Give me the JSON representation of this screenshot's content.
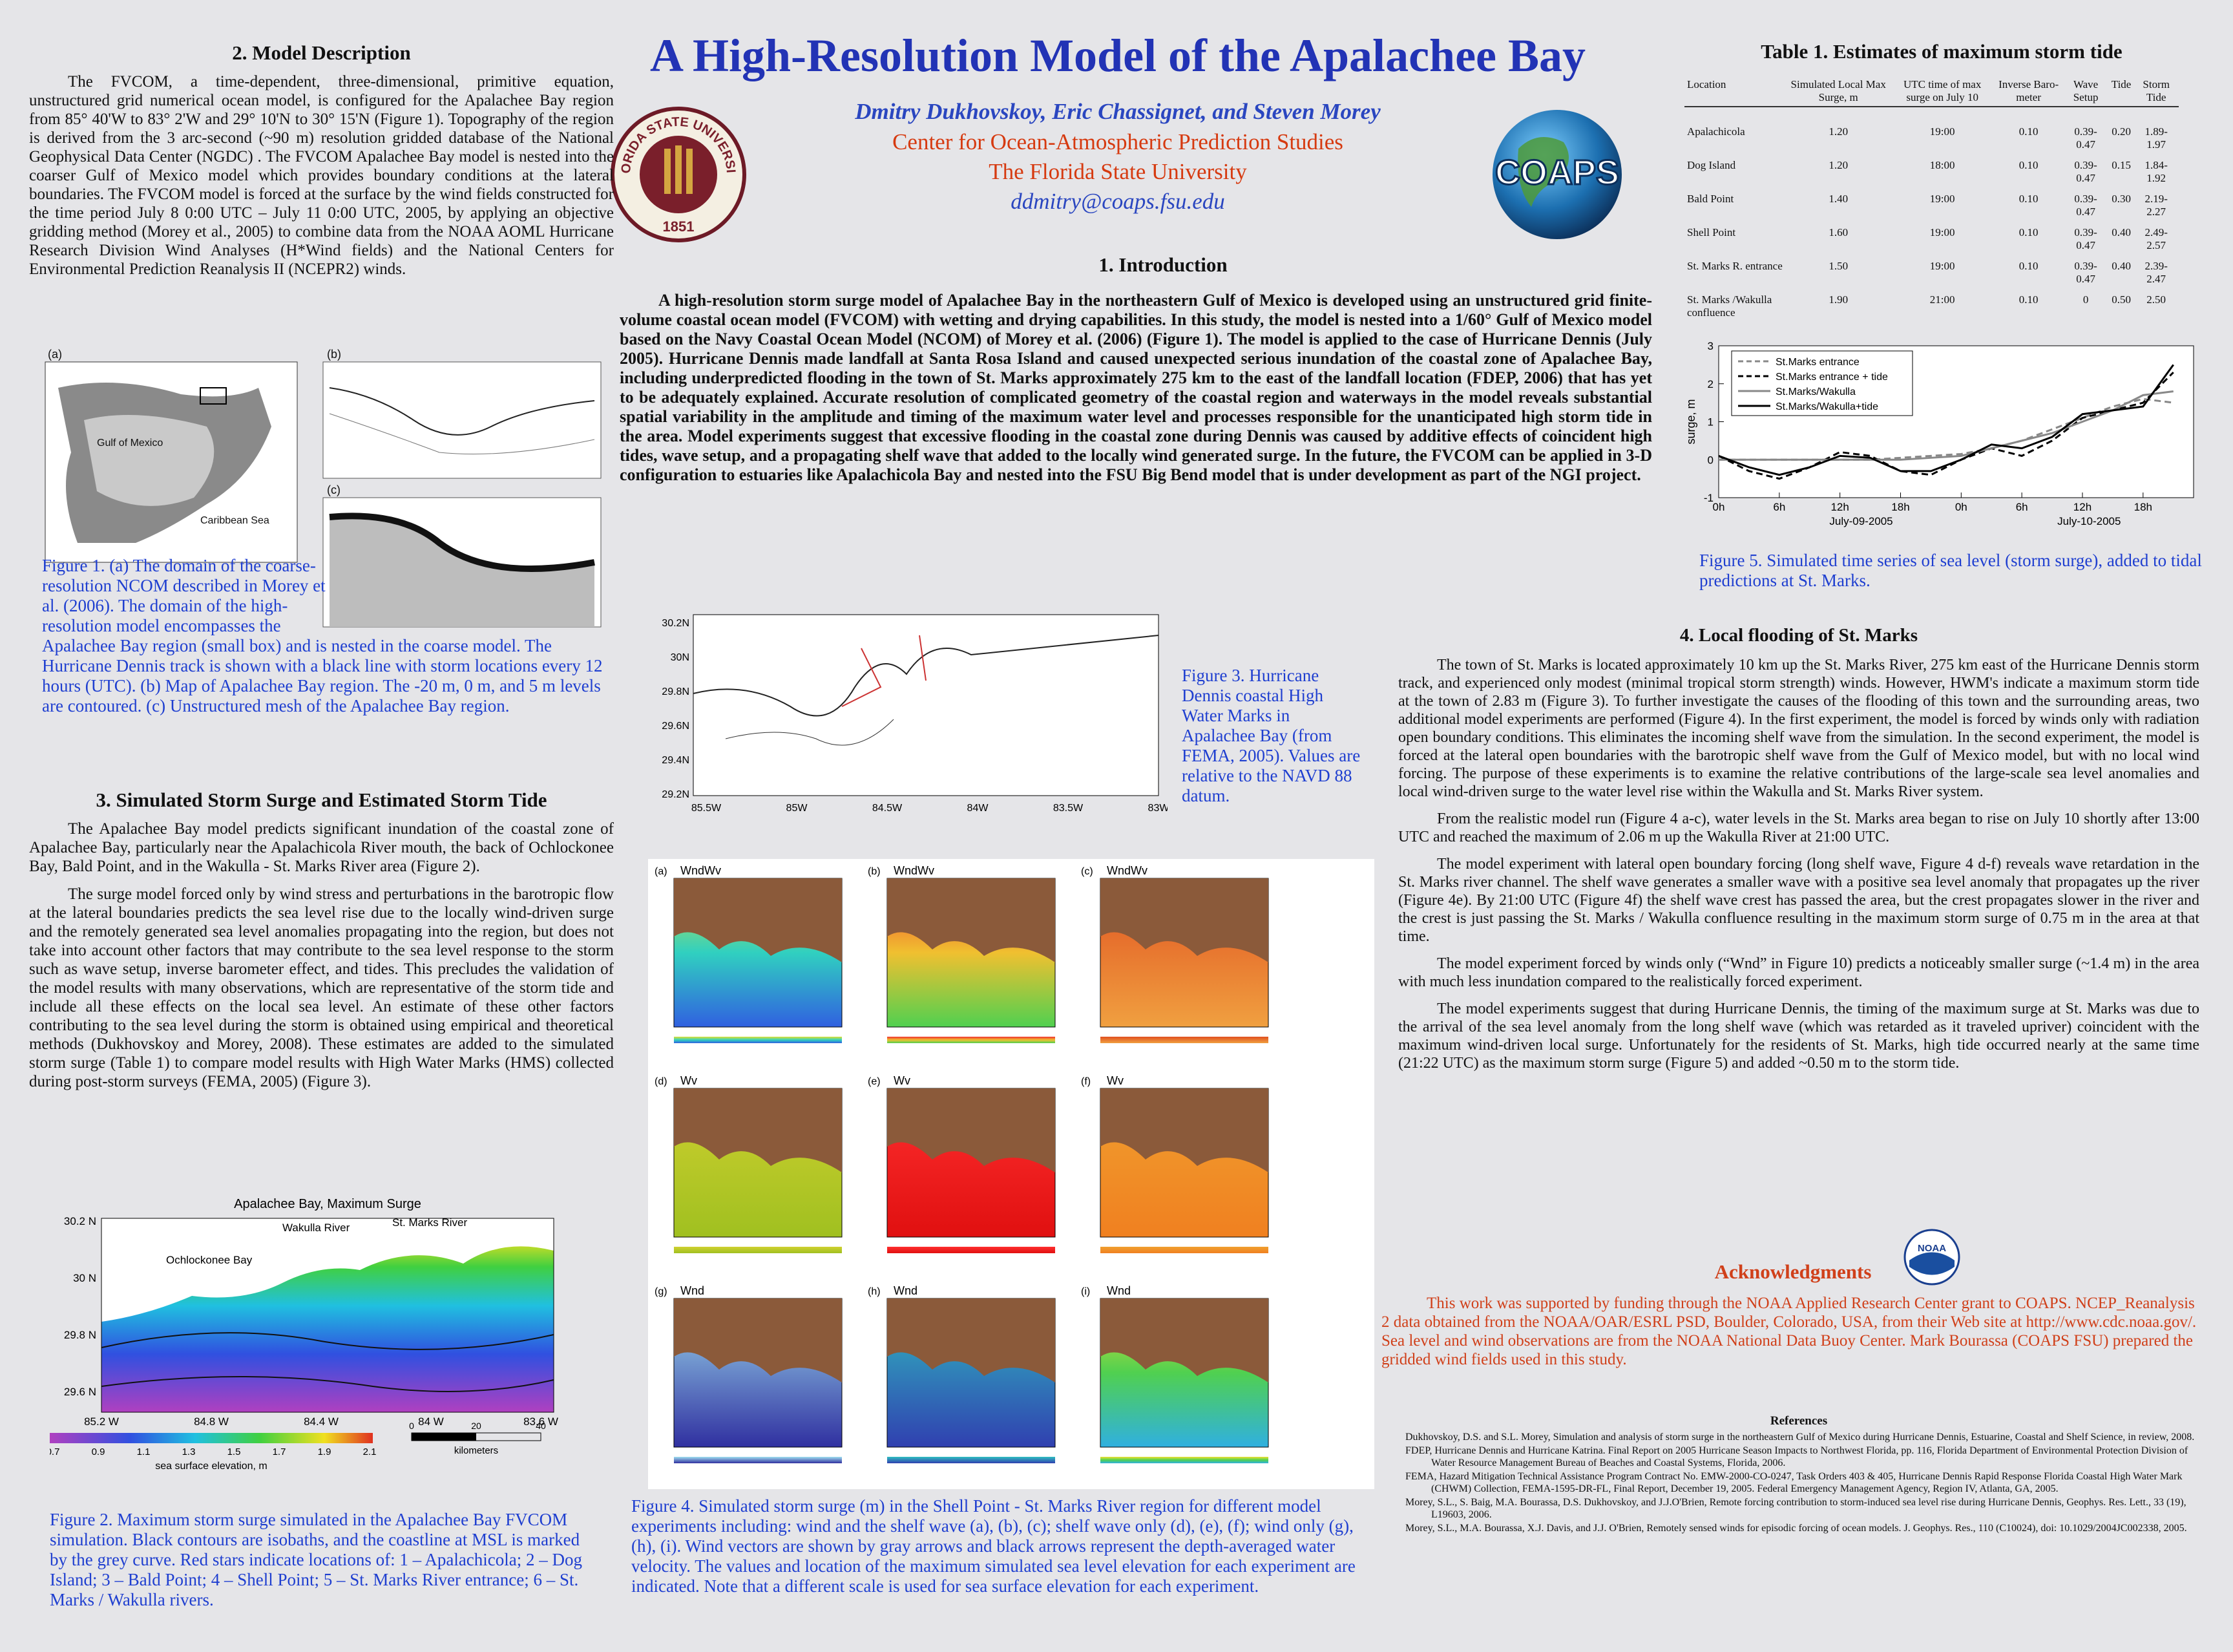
{
  "header": {
    "title": "A High-Resolution Model of the Apalachee Bay",
    "authors": "Dmitry Dukhovskoy, Eric Chassignet, and Steven Morey",
    "center": "Center for Ocean-Atmospheric Prediction Studies",
    "university": "The Florida State University",
    "email": "ddmitry@coaps.fsu.edu",
    "seal_text": "FLORIDA STATE UNIVERSITY",
    "seal_year": "1851",
    "logo_text": "COAPS"
  },
  "model_description": {
    "heading": "2. Model Description",
    "paragraphs": [
      "The FVCOM, a time-dependent, three-dimensional, primitive equation, unstructured grid numerical ocean model, is configured for the Apalachee Bay region from 85° 40'W to 83° 2'W and 29° 10'N to 30° 15'N (Figure 1). Topography of the region is derived from the 3 arc-second (~90 m) resolution gridded database of the National Geophysical Data Center (NGDC) . The FVCOM Apalachee Bay model is nested into the coarser Gulf of Mexico model which provides boundary conditions at the lateral boundaries. The FVCOM model is forced at the surface by the wind fields constructed for the time period July 8 0:00 UTC – July 11 0:00 UTC, 2005, by applying an objective gridding method (Morey et al., 2005) to combine data from the NOAA AOML Hurricane Research Division Wind Analyses (H*Wind fields) and the National Centers for Environmental Prediction Reanalysis II (NCEPR2) winds."
    ]
  },
  "figure1": {
    "labels": [
      "(a)",
      "(b)",
      "(c)",
      "Gulf of Mexico",
      "Caribbean Sea"
    ],
    "caption": "Figure 1. (a) The domain of the coarse-resolution NCOM described in Morey et al. (2006). The domain of the high-resolution model encompasses the Apalachee Bay region (small box) and is nested in the coarse model. The Hurricane Dennis track is shown with a black line with storm locations every 12 hours (UTC). (b) Map of Apalachee Bay region. The -20 m, 0 m, and 5 m levels are contoured. (c) Unstructured mesh of the Apalachee Bay region."
  },
  "storm_surge": {
    "heading": "3. Simulated Storm Surge and Estimated Storm Tide",
    "paragraphs": [
      "The Apalachee Bay model predicts significant inundation of the coastal zone of Apalachee Bay, particularly near the Apalachicola River mouth, the back of Ochlockonee Bay, Bald Point, and in the Wakulla - St. Marks River area (Figure 2).",
      "The surge model forced only by wind stress and perturbations in the barotropic flow at the lateral boundaries predicts the sea level rise due to the locally wind-driven surge and the remotely generated sea level anomalies propagating into the region, but does not take into account other factors that may contribute to the sea level response to the storm such as wave setup, inverse barometer effect, and tides. This precludes the validation of the model results with many observations, which are representative of the storm tide and include all these effects on the local sea level. An estimate of these other factors contributing to the sea level during the storm is obtained using empirical and theoretical methods (Dukhovskoy and Morey, 2008). These estimates are added to the simulated storm surge (Table 1) to compare model results with High Water Marks (HMS) collected during post-storm surveys (FEMA, 2005) (Figure 3)."
    ]
  },
  "figure2": {
    "map_title": "Apalachee Bay, Maximum Surge",
    "places": [
      "Wakulla River",
      "St. Marks River",
      "Ochlockonee Bay"
    ],
    "lat_labels": [
      "30.2 N",
      "30 N",
      "29.8 N",
      "29.6 N"
    ],
    "lon_labels": [
      "85.2 W",
      "84.8 W",
      "84.4 W",
      "84 W",
      "83.6 W"
    ],
    "colorbar_labels": [
      "0.7",
      "0.9",
      "1.1",
      "1.3",
      "1.5",
      "1.7",
      "1.9",
      "2.1"
    ],
    "colorbar_title": "sea surface elevation, m",
    "scale_labels": [
      "0",
      "20",
      "40"
    ],
    "scale_unit": "kilometers",
    "caption": "Figure 2. Maximum storm surge simulated in the Apalachee Bay FVCOM simulation. Black contours are isobaths, and the coastline at MSL is marked by the grey curve. Red stars indicate locations of: 1 – Apalachicola; 2 – Dog Island; 3 – Bald Point; 4 – Shell Point; 5 – St. Marks River entrance; 6 – St. Marks / Wakulla rivers."
  },
  "introduction": {
    "heading": "1. Introduction",
    "paragraph": "A high-resolution storm surge model of Apalachee Bay in the northeastern Gulf of Mexico is developed using an unstructured grid finite-volume coastal ocean model (FVCOM) with wetting and drying capabilities. In this study, the model is nested into a 1/60° Gulf of Mexico model based on the Navy Coastal Ocean Model (NCOM) of Morey et al. (2006) (Figure 1). The model is applied to the case of Hurricane Dennis (July 2005). Hurricane Dennis made landfall at Santa Rosa Island and caused unexpected serious inundation of the coastal zone of Apalachee Bay, including underpredicted flooding in the town of St. Marks approximately 275 km to the east of the landfall location (FDEP, 2006) that has yet to be adequately explained. Accurate resolution of complicated geometry of the coastal region and waterways in the model reveals substantial spatial variability in the amplitude and timing of the maximum water level and processes responsible for the unanticipated high storm tide in the area. Model experiments suggest that excessive flooding in the coastal zone during Dennis was caused by additive effects of coincident high tides, wave setup, and a propagating shelf wave that added to the locally wind generated surge. In the future, the FVCOM can be applied in 3-D configuration to estuaries like Apalachicola Bay and nested into the FSU Big Bend model that is under development as part of the NGI project."
  },
  "figure3": {
    "lat_labels": [
      "30.2N",
      "30N",
      "29.8N",
      "29.6N",
      "29.4N",
      "29.2N"
    ],
    "lon_labels": [
      "85.5W",
      "85W",
      "84.5W",
      "84W",
      "83.5W",
      "83W"
    ],
    "caption": "Figure 3. Hurricane Dennis coastal High Water Marks in Apalachee Bay (from FEMA, 2005). Values are relative to the NAVD 88 datum."
  },
  "figure4": {
    "panels": [
      {
        "letter": "(a)",
        "experiment": "WndWv"
      },
      {
        "letter": "(b)",
        "experiment": "WndWv"
      },
      {
        "letter": "(c)",
        "experiment": "WndWv"
      },
      {
        "letter": "(d)",
        "experiment": "Wv"
      },
      {
        "letter": "(e)",
        "experiment": "Wv"
      },
      {
        "letter": "(f)",
        "experiment": "Wv"
      },
      {
        "letter": "(g)",
        "experiment": "Wnd"
      },
      {
        "letter": "(h)",
        "experiment": "Wnd"
      },
      {
        "letter": "(i)",
        "experiment": "Wnd"
      }
    ],
    "caption": "Figure 4. Simulated storm surge (m) in the Shell Point - St. Marks River region for different model experiments including: wind and the shelf wave (a), (b), (c); shelf wave only (d), (e), (f); wind only (g), (h), (i). Wind vectors are shown by gray arrows and black arrows represent the depth-averaged water velocity. The values and location of the maximum simulated sea level elevation for each experiment are indicated. Note that a different scale is used for sea surface elevation for each experiment."
  },
  "table": {
    "title": "Table 1. Estimates of maximum storm tide",
    "headers": [
      "Location",
      "Simulated Local Max Surge, m",
      "UTC time of max surge on July 10",
      "Inverse Baro-meter",
      "Wave Setup",
      "Tide",
      "Storm Tide"
    ],
    "rows": [
      [
        "Apalachicola",
        "1.20",
        "19:00",
        "0.10",
        "0.39-0.47",
        "0.20",
        "1.89-1.97"
      ],
      [
        "Dog Island",
        "1.20",
        "18:00",
        "0.10",
        "0.39-0.47",
        "0.15",
        "1.84-1.92"
      ],
      [
        "Bald Point",
        "1.40",
        "19:00",
        "0.10",
        "0.39-0.47",
        "0.30",
        "2.19-2.27"
      ],
      [
        "Shell Point",
        "1.60",
        "19:00",
        "0.10",
        "0.39-0.47",
        "0.40",
        "2.49-2.57"
      ],
      [
        "St. Marks R. entrance",
        "1.50",
        "19:00",
        "0.10",
        "0.39-0.47",
        "0.40",
        "2.39-2.47"
      ],
      [
        "St. Marks /Wakulla confluence",
        "1.90",
        "21:00",
        "0.10",
        "0",
        "0.50",
        "2.50"
      ]
    ]
  },
  "figure5": {
    "type": "line",
    "ylabel": "surge, m",
    "x": [
      0,
      3,
      6,
      9,
      12,
      15,
      18,
      21,
      24,
      27,
      30,
      33,
      36,
      39,
      42,
      45
    ],
    "xlim": [
      0,
      47
    ],
    "ylim": [
      -1,
      3
    ],
    "yticks": [
      -1,
      0,
      1,
      2,
      3
    ],
    "xticks": [
      {
        "value": 0,
        "label": "0h"
      },
      {
        "value": 6,
        "label": "6h"
      },
      {
        "value": 12,
        "label": "12h"
      },
      {
        "value": 18,
        "label": "18h"
      },
      {
        "value": 24,
        "label": "0h"
      },
      {
        "value": 30,
        "label": "6h"
      },
      {
        "value": 36,
        "label": "12h"
      },
      {
        "value": 42,
        "label": "18h"
      }
    ],
    "dates": [
      "July-09-2005",
      "July-10-2005"
    ],
    "legend": "upper left",
    "series": [
      {
        "name": "St.Marks entrance",
        "color": "#888888",
        "dash": true,
        "values": [
          0,
          0,
          0,
          0,
          0,
          0,
          0.05,
          0.1,
          0.15,
          0.3,
          0.5,
          0.8,
          1.1,
          1.4,
          1.6,
          1.5
        ]
      },
      {
        "name": "St.Marks entrance + tide",
        "color": "#000000",
        "dash": true,
        "values": [
          0.1,
          -0.3,
          -0.5,
          -0.2,
          0.2,
          0.1,
          -0.3,
          -0.4,
          0,
          0.3,
          0.1,
          0.5,
          1.1,
          1.3,
          1.5,
          2.3
        ]
      },
      {
        "name": "St.Marks/Wakulla",
        "color": "#888888",
        "dash": false,
        "values": [
          0,
          0,
          0,
          0,
          0,
          0,
          0,
          0.05,
          0.1,
          0.3,
          0.5,
          0.7,
          1.0,
          1.3,
          1.7,
          1.8
        ]
      },
      {
        "name": "St.Marks/Wakulla+tide",
        "color": "#000000",
        "dash": false,
        "values": [
          0.1,
          -0.2,
          -0.4,
          -0.2,
          0.1,
          0.05,
          -0.3,
          -0.3,
          0,
          0.4,
          0.3,
          0.6,
          1.2,
          1.3,
          1.4,
          2.5
        ]
      }
    ],
    "caption": "Figure 5. Simulated time series of sea level (storm surge), added to tidal predictions at St. Marks."
  },
  "local_flooding": {
    "heading": "4. Local flooding of St. Marks",
    "paragraphs": [
      "The town of St. Marks is located approximately 10 km up the St. Marks River, 275 km east of the Hurricane Dennis storm track, and experienced only modest (minimal tropical storm strength) winds. However, HWM's indicate a maximum storm tide at the town of 2.83 m (Figure 3). To further investigate the causes of the flooding of this town and the surrounding areas, two additional model experiments are performed (Figure 4). In the first experiment, the model is forced by winds only with radiation open boundary conditions. This eliminates the incoming shelf wave from the simulation. In the second experiment, the model is forced at the lateral open boundaries with the barotropic shelf wave from the Gulf of Mexico model, but with no local wind forcing. The purpose of these experiments is to examine the relative contributions of the large-scale sea level anomalies and local wind-driven surge to the water level rise within the Wakulla and St. Marks River system.",
      "From the realistic model run (Figure 4 a-c), water levels in the St. Marks area began to rise on July 10 shortly after 13:00 UTC and reached the maximum of 2.06 m up the Wakulla River at 21:00 UTC.",
      "The model experiment with lateral open boundary forcing (long shelf wave, Figure 4 d-f) reveals wave retardation in the St. Marks river channel. The shelf wave generates a smaller wave with a positive sea level anomaly that propagates up the river (Figure 4e). By 21:00 UTC (Figure 4f) the shelf wave crest has passed the area, but the crest propagates slower in the river and the crest is just passing the St. Marks / Wakulla confluence resulting in the maximum storm surge of 0.75 m in the area at that time.",
      "The model experiment forced by winds only (“Wnd” in Figure 10) predicts a noticeably smaller surge (~1.4 m) in the area with much less inundation compared to the realistically forced experiment.",
      "The model experiments suggest that during Hurricane Dennis, the timing of the maximum surge at St. Marks was due to the arrival of the sea level anomaly from the long shelf wave (which was retarded as it traveled upriver) coincident with the maximum wind-driven local surge. Unfortunately for the residents of St. Marks, high tide occurred nearly at the same time (21:22 UTC) as the maximum storm surge (Figure 5) and added ~0.50 m to the storm tide."
    ]
  },
  "acknowledgments": {
    "heading": "Acknowledgments",
    "logo_text": "NOAA",
    "text": "This work was supported by funding through the NOAA Applied Research Center grant to COAPS. NCEP_Reanalysis 2 data obtained from the NOAA/OAR/ESRL PSD, Boulder, Colorado, USA, from their Web site at http://www.cdc.noaa.gov/. Sea level and wind observations are from the NOAA National Data Buoy Center. Mark Bourassa (COAPS FSU) prepared the gridded wind fields used in this study."
  },
  "references": {
    "heading": "References",
    "items": [
      "Dukhovskoy, D.S. and S.L. Morey, Simulation and analysis of storm surge in the northeastern Gulf of Mexico during Hurricane Dennis, Estuarine, Coastal and Shelf Science, in review, 2008.",
      "FDEP, Hurricane Dennis and Hurricane Katrina. Final Report on 2005 Hurricane Season Impacts to Northwest Florida, pp. 116, Florida Department of Environmental Protection Division of Water Resource Management Bureau of Beaches and Coastal Systems, Florida, 2006.",
      "FEMA, Hazard Mitigation Technical Assistance Program Contract No. EMW-2000-CO-0247, Task Orders 403 & 405, Hurricane Dennis Rapid Response Florida Coastal High Water Mark (CHWM) Collection, FEMA-1595-DR-FL, Final Report, December 19, 2005. Federal Emergency Management Agency, Region IV, Atlanta, GA, 2005.",
      "Morey, S.L., S. Baig, M.A. Bourassa, D.S. Dukhovskoy, and J.J.O'Brien, Remote forcing contribution to storm-induced sea level rise during Hurricane Dennis, Geophys. Res. Lett., 33 (19), L19603, 2006.",
      "Morey, S.L., M.A. Bourassa, X.J. Davis, and J.J. O'Brien, Remotely sensed winds for episodic forcing of ocean models. J. Geophys. Res., 110 (C10024), doi: 10.1029/2004JC002338, 2005."
    ]
  }
}
